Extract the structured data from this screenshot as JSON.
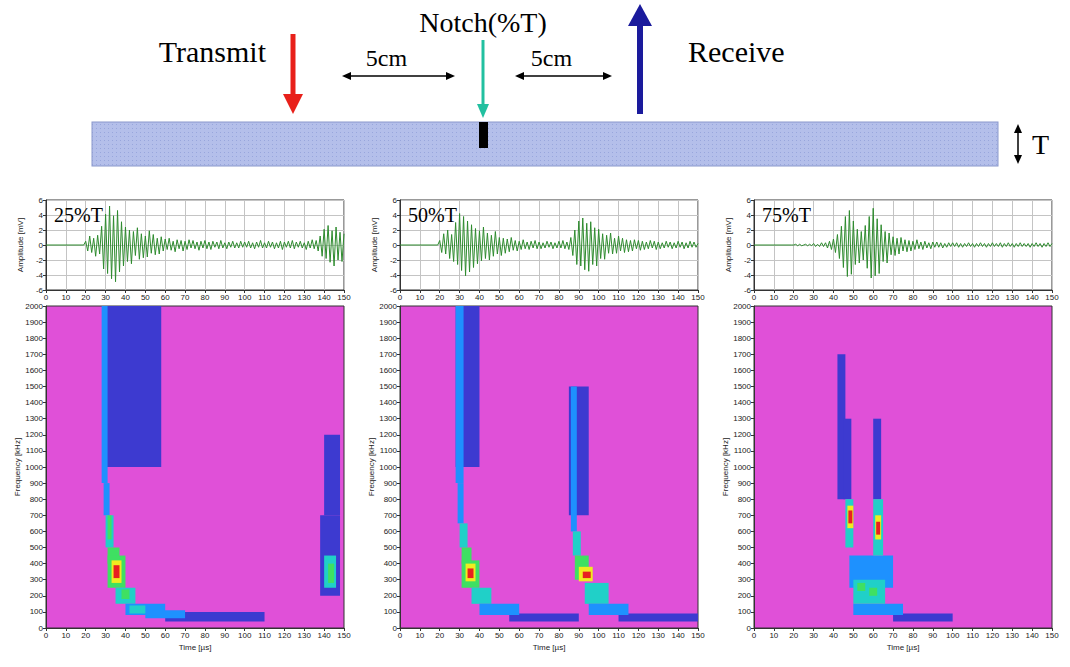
{
  "diagram": {
    "transmit": "Transmit",
    "notch": "Notch(%T)",
    "spacings": [
      "5cm",
      "5cm"
    ],
    "receive": "Receive",
    "thickness": "T"
  },
  "chart_data": [
    {
      "type": "line",
      "title": "25%T",
      "ylabel": "Amplitude [mV]",
      "color": "#2e8b2e",
      "grid": true,
      "xlim": [
        0,
        150
      ],
      "xticks": [
        0,
        10,
        20,
        30,
        40,
        50,
        60,
        70,
        80,
        90,
        100,
        110,
        120,
        130,
        140,
        150
      ],
      "ylim": [
        -6,
        6
      ],
      "yticks": [
        -6,
        -4,
        -2,
        0,
        2,
        4,
        6
      ],
      "x": [
        0,
        19,
        20,
        21,
        22,
        23,
        24,
        25,
        26,
        27,
        28,
        29,
        30,
        31,
        32,
        33,
        34,
        35,
        36,
        37,
        38,
        39,
        40,
        41,
        42,
        43,
        44,
        45,
        46,
        47,
        48,
        49,
        50,
        51,
        52,
        53,
        54,
        55,
        56,
        57,
        58,
        59,
        60,
        61,
        62,
        63,
        64,
        65,
        66,
        67,
        68,
        69,
        70,
        71,
        72,
        73,
        74,
        75,
        76,
        77,
        78,
        79,
        80,
        81,
        82,
        83,
        84,
        85,
        86,
        87,
        88,
        89,
        90,
        91,
        92,
        93,
        94,
        95,
        96,
        97,
        98,
        99,
        100,
        101,
        102,
        103,
        104,
        105,
        106,
        107,
        108,
        109,
        110,
        111,
        112,
        113,
        114,
        115,
        116,
        117,
        118,
        119,
        120,
        121,
        122,
        123,
        124,
        125,
        126,
        127,
        128,
        129,
        130,
        131,
        132,
        133,
        134,
        135,
        136,
        137,
        138,
        139,
        140,
        141,
        142,
        143,
        144,
        145,
        146,
        147,
        148,
        149,
        150
      ],
      "values": [
        0,
        0,
        0.5,
        -0.8,
        1.2,
        -1,
        0.9,
        -1.5,
        1.3,
        -1.2,
        2.5,
        -3.2,
        4.1,
        -3.8,
        5.2,
        -4.5,
        3.9,
        -4.9,
        4.6,
        -3.6,
        3.1,
        -2.8,
        2.4,
        -2.2,
        2,
        -2.5,
        1.8,
        -1.4,
        2.3,
        -1.9,
        1.5,
        -1.7,
        1.2,
        -1.6,
        1.9,
        -1.1,
        1.4,
        -1.3,
        0.9,
        -1.2,
        1.1,
        -0.8,
        0.8,
        -0.6,
        0.9,
        -0.7,
        0.5,
        -0.9,
        0.7,
        -0.5,
        0.6,
        -0.8,
        0.5,
        -0.6,
        0.7,
        -0.4,
        0.6,
        -0.5,
        0.4,
        -0.7,
        0.5,
        -0.4,
        0.6,
        -0.5,
        0.4,
        -0.6,
        0.5,
        -0.3,
        0.4,
        -0.5,
        0.6,
        -0.4,
        0.3,
        -0.5,
        0.4,
        -0.3,
        0.5,
        -0.4,
        0.3,
        -0.4,
        0.5,
        -0.3,
        0.4,
        -0.3,
        0.5,
        -0.4,
        0.3,
        -0.5,
        0.4,
        -0.3,
        0.6,
        -0.4,
        0.3,
        -0.4,
        0.5,
        -0.3,
        0.4,
        -0.5,
        0.3,
        -0.4,
        0.5,
        -0.6,
        0.4,
        -0.3,
        0.5,
        -0.4,
        0.6,
        -0.5,
        0.4,
        -0.3,
        0.5,
        -0.4,
        0.3,
        -0.6,
        0.5,
        -0.4,
        0.7,
        -0.5,
        0.6,
        -0.8,
        1.2,
        -1.5,
        2.1,
        -1.8,
        2.6,
        -2.3,
        1.9,
        -2.8,
        2.4,
        -2,
        1.7,
        -2.2,
        1.5
      ]
    },
    {
      "type": "heatmap",
      "xlabel": "Time [µs]",
      "ylabel": "Frequency [kHz]",
      "grid": false,
      "xlim": [
        0,
        150
      ],
      "xticks": [
        0,
        10,
        20,
        30,
        40,
        50,
        60,
        70,
        80,
        90,
        100,
        110,
        120,
        130,
        140,
        150
      ],
      "ylim": [
        0,
        2000
      ],
      "yticks": [
        0,
        100,
        200,
        300,
        400,
        500,
        600,
        700,
        800,
        900,
        1000,
        1100,
        1200,
        1300,
        1400,
        1500,
        1600,
        1700,
        1800,
        1900,
        2000
      ],
      "zlim": [
        0,
        6
      ],
      "cells": [
        [
          30,
          58,
          1000,
          2000,
          1
        ],
        [
          28,
          31,
          900,
          2000,
          2
        ],
        [
          29,
          32,
          700,
          900,
          2
        ],
        [
          30,
          34,
          500,
          700,
          3
        ],
        [
          31,
          33,
          550,
          700,
          4
        ],
        [
          31,
          37,
          400,
          500,
          4
        ],
        [
          31,
          40,
          250,
          450,
          4
        ],
        [
          33,
          38,
          280,
          420,
          5
        ],
        [
          34,
          37,
          310,
          390,
          6
        ],
        [
          35,
          45,
          150,
          250,
          3
        ],
        [
          38,
          42,
          180,
          240,
          4
        ],
        [
          60,
          110,
          40,
          100,
          1
        ],
        [
          50,
          70,
          60,
          110,
          2
        ],
        [
          40,
          60,
          80,
          150,
          2
        ],
        [
          42,
          50,
          90,
          140,
          3
        ],
        [
          140,
          148,
          700,
          1200,
          1
        ],
        [
          138,
          148,
          200,
          700,
          1
        ],
        [
          140,
          146,
          250,
          450,
          3
        ],
        [
          142,
          145,
          280,
          400,
          4
        ]
      ]
    },
    {
      "type": "line",
      "title": "50%T",
      "ylabel": "Amplitude [mV]",
      "color": "#2e8b2e",
      "grid": true,
      "xlim": [
        0,
        150
      ],
      "xticks": [
        0,
        10,
        20,
        30,
        40,
        50,
        60,
        70,
        80,
        90,
        100,
        110,
        120,
        130,
        140,
        150
      ],
      "ylim": [
        -6,
        6
      ],
      "yticks": [
        -6,
        -4,
        -2,
        0,
        2,
        4,
        6
      ],
      "x": [
        0,
        19,
        20,
        21,
        22,
        23,
        24,
        25,
        26,
        27,
        28,
        29,
        30,
        31,
        32,
        33,
        34,
        35,
        36,
        37,
        38,
        39,
        40,
        41,
        42,
        43,
        44,
        45,
        46,
        47,
        48,
        49,
        50,
        51,
        52,
        53,
        54,
        55,
        56,
        57,
        58,
        59,
        60,
        61,
        62,
        63,
        64,
        65,
        66,
        67,
        68,
        69,
        70,
        71,
        72,
        73,
        74,
        75,
        76,
        77,
        78,
        79,
        80,
        81,
        82,
        83,
        84,
        85,
        86,
        87,
        88,
        89,
        90,
        91,
        92,
        93,
        94,
        95,
        96,
        97,
        98,
        99,
        100,
        101,
        102,
        103,
        104,
        105,
        106,
        107,
        108,
        109,
        110,
        111,
        112,
        113,
        114,
        115,
        116,
        117,
        118,
        119,
        120,
        121,
        122,
        123,
        124,
        125,
        126,
        127,
        128,
        129,
        130,
        131,
        132,
        133,
        134,
        135,
        136,
        137,
        138,
        139,
        140,
        141,
        142,
        143,
        144,
        145,
        146,
        147,
        148,
        149,
        150
      ],
      "values": [
        0,
        0,
        0.6,
        -1,
        1.5,
        -1.2,
        2,
        -1.8,
        1.4,
        -2.2,
        3,
        -2.6,
        4.2,
        -3.4,
        3.8,
        -4.1,
        3.2,
        -3.6,
        2.7,
        -3,
        2.2,
        -2.5,
        1.9,
        -2.1,
        2.4,
        -1.8,
        1.6,
        -2,
        1.3,
        -1.5,
        1.8,
        -1.2,
        1,
        -1.4,
        0.9,
        -1.1,
        0.8,
        -0.9,
        1,
        -0.7,
        0.6,
        -0.8,
        0.5,
        -0.6,
        0.7,
        -0.5,
        0.4,
        -0.6,
        0.5,
        -0.4,
        0.6,
        -0.5,
        0.4,
        -0.5,
        0.3,
        -0.4,
        0.5,
        -0.3,
        0.4,
        -0.5,
        0.3,
        -0.4,
        0.5,
        -0.4,
        0.6,
        -0.5,
        0.4,
        -0.6,
        1,
        -1.4,
        2,
        -2.6,
        3.2,
        -2.8,
        3.6,
        -3.3,
        2.9,
        -3.5,
        3.1,
        -2.6,
        2.3,
        -2.8,
        2.1,
        -1.8,
        1.5,
        -1.9,
        1.3,
        -1.1,
        1.6,
        -1.2,
        0.9,
        -1.1,
        1.2,
        -0.8,
        0.9,
        -1,
        0.7,
        -0.9,
        0.6,
        -0.8,
        0.7,
        -0.5,
        0.6,
        -0.7,
        0.5,
        -0.6,
        0.4,
        -0.5,
        0.6,
        -0.4,
        0.5,
        -0.6,
        0.4,
        -0.5,
        0.3,
        -0.4,
        0.5,
        -0.3,
        0.4,
        -0.5,
        0.3,
        -0.4,
        0.5,
        -0.3,
        0.4,
        -0.5,
        0.3,
        -0.4,
        0.5,
        -0.3,
        0.4,
        -0.3,
        0.2
      ]
    },
    {
      "type": "heatmap",
      "xlabel": "Time [µs]",
      "ylabel": "Frequency [kHz]",
      "grid": false,
      "xlim": [
        0,
        150
      ],
      "xticks": [
        0,
        10,
        20,
        30,
        40,
        50,
        60,
        70,
        80,
        90,
        100,
        110,
        120,
        130,
        140,
        150
      ],
      "ylim": [
        0,
        2000
      ],
      "yticks": [
        0,
        100,
        200,
        300,
        400,
        500,
        600,
        700,
        800,
        900,
        1000,
        1100,
        1200,
        1300,
        1400,
        1500,
        1600,
        1700,
        1800,
        1900,
        2000
      ],
      "zlim": [
        0,
        6
      ],
      "cells": [
        [
          28,
          40,
          1000,
          2000,
          1
        ],
        [
          28,
          32,
          900,
          2000,
          2
        ],
        [
          29,
          32,
          650,
          900,
          2
        ],
        [
          30,
          34,
          500,
          650,
          3
        ],
        [
          31,
          36,
          400,
          500,
          4
        ],
        [
          31,
          40,
          250,
          420,
          4
        ],
        [
          33,
          38,
          290,
          400,
          5
        ],
        [
          34,
          37,
          310,
          370,
          6
        ],
        [
          36,
          46,
          150,
          250,
          3
        ],
        [
          55,
          90,
          40,
          90,
          1
        ],
        [
          40,
          60,
          80,
          150,
          2
        ],
        [
          85,
          95,
          700,
          1500,
          1
        ],
        [
          86,
          89,
          600,
          1500,
          2
        ],
        [
          87,
          91,
          450,
          600,
          3
        ],
        [
          88,
          95,
          300,
          450,
          4
        ],
        [
          90,
          97,
          290,
          380,
          5
        ],
        [
          92,
          96,
          310,
          350,
          6
        ],
        [
          93,
          105,
          150,
          280,
          3
        ],
        [
          110,
          150,
          40,
          90,
          1
        ],
        [
          95,
          115,
          80,
          150,
          2
        ]
      ]
    },
    {
      "type": "line",
      "title": "75%T",
      "ylabel": "Amplitude [mV]",
      "color": "#2e8b2e",
      "grid": true,
      "xlim": [
        0,
        150
      ],
      "xticks": [
        0,
        10,
        20,
        30,
        40,
        50,
        60,
        70,
        80,
        90,
        100,
        110,
        120,
        130,
        140,
        150
      ],
      "ylim": [
        -6,
        6
      ],
      "yticks": [
        -6,
        -4,
        -2,
        0,
        2,
        4,
        6
      ],
      "x": [
        0,
        19,
        20,
        21,
        22,
        23,
        24,
        25,
        26,
        27,
        28,
        29,
        30,
        31,
        32,
        33,
        34,
        35,
        36,
        37,
        38,
        39,
        40,
        41,
        42,
        43,
        44,
        45,
        46,
        47,
        48,
        49,
        50,
        51,
        52,
        53,
        54,
        55,
        56,
        57,
        58,
        59,
        60,
        61,
        62,
        63,
        64,
        65,
        66,
        67,
        68,
        69,
        70,
        71,
        72,
        73,
        74,
        75,
        76,
        77,
        78,
        79,
        80,
        81,
        82,
        83,
        84,
        85,
        86,
        87,
        88,
        89,
        90,
        91,
        92,
        93,
        94,
        95,
        96,
        97,
        98,
        99,
        100,
        101,
        102,
        103,
        104,
        105,
        106,
        107,
        108,
        109,
        110,
        111,
        112,
        113,
        114,
        115,
        116,
        117,
        118,
        119,
        120,
        121,
        122,
        123,
        124,
        125,
        126,
        127,
        128,
        129,
        130,
        131,
        132,
        133,
        134,
        135,
        136,
        137,
        138,
        139,
        140,
        141,
        142,
        143,
        144,
        145,
        146,
        147,
        148,
        149,
        150
      ],
      "values": [
        0,
        0,
        0,
        0.1,
        -0.1,
        0.1,
        -0.1,
        0,
        0.1,
        -0.1,
        0.1,
        -0.1,
        0.2,
        -0.2,
        0.1,
        -0.2,
        0.3,
        -0.2,
        0.3,
        -0.4,
        0.5,
        -0.6,
        0.8,
        -1,
        1.4,
        -1.8,
        2.5,
        -3,
        3.8,
        -4.2,
        4.6,
        -3.9,
        3.2,
        -2.6,
        2.1,
        -2.4,
        1.8,
        -2,
        2.6,
        -3.1,
        3.8,
        -4.4,
        4.9,
        -4.1,
        3.5,
        -3.8,
        2.7,
        -2.2,
        1.8,
        -2.4,
        1.6,
        -1.3,
        1.1,
        -1.4,
        0.9,
        -1.2,
        1,
        -0.8,
        0.7,
        -0.9,
        0.6,
        -0.8,
        0.5,
        -0.6,
        0.7,
        -0.5,
        0.4,
        -0.6,
        0.5,
        -0.4,
        0.3,
        -0.5,
        0.4,
        -0.3,
        0.4,
        -0.3,
        0.3,
        -0.4,
        0.2,
        -0.3,
        0.3,
        -0.2,
        0.3,
        -0.2,
        0.3,
        -0.3,
        0.2,
        -0.3,
        0.2,
        -0.2,
        0.3,
        -0.2,
        0.2,
        -0.3,
        0.2,
        -0.2,
        0.3,
        -0.2,
        0.2,
        -0.3,
        0.2,
        -0.2,
        0.3,
        -0.2,
        0.2,
        -0.2,
        0.3,
        -0.3,
        0.2,
        -0.2,
        0.3,
        -0.2,
        0.2,
        -0.3,
        0.2,
        -0.2,
        0.3,
        -0.2,
        0.2,
        -0.2,
        0.2,
        -0.3,
        0.2,
        -0.2,
        0.3,
        -0.2,
        0.2,
        -0.3,
        0.2,
        -0.2,
        0.3,
        -0.2,
        0.2
      ]
    },
    {
      "type": "heatmap",
      "xlabel": "Time [µs]",
      "ylabel": "Frequency [kHz]",
      "grid": false,
      "xlim": [
        0,
        150
      ],
      "xticks": [
        0,
        10,
        20,
        30,
        40,
        50,
        60,
        70,
        80,
        90,
        100,
        110,
        120,
        130,
        140,
        150
      ],
      "ylim": [
        0,
        2000
      ],
      "yticks": [
        0,
        100,
        200,
        300,
        400,
        500,
        600,
        700,
        800,
        900,
        1000,
        1100,
        1200,
        1300,
        1400,
        1500,
        1600,
        1700,
        1800,
        1900,
        2000
      ],
      "zlim": [
        0,
        6
      ],
      "cells": [
        [
          42,
          46,
          800,
          1700,
          1
        ],
        [
          45,
          49,
          800,
          1300,
          1
        ],
        [
          60,
          64,
          800,
          1300,
          1
        ],
        [
          70,
          100,
          40,
          90,
          1
        ],
        [
          48,
          70,
          250,
          450,
          2
        ],
        [
          50,
          75,
          80,
          150,
          2
        ],
        [
          50,
          66,
          150,
          300,
          3
        ],
        [
          52,
          56,
          230,
          280,
          4
        ],
        [
          58,
          62,
          200,
          250,
          4
        ],
        [
          46,
          50,
          500,
          800,
          3
        ],
        [
          47,
          50,
          620,
          760,
          5
        ],
        [
          47.5,
          49.5,
          650,
          730,
          6
        ],
        [
          60,
          65,
          450,
          800,
          3
        ],
        [
          61,
          64,
          550,
          700,
          5
        ],
        [
          61.5,
          63.5,
          580,
          660,
          6
        ]
      ]
    }
  ]
}
